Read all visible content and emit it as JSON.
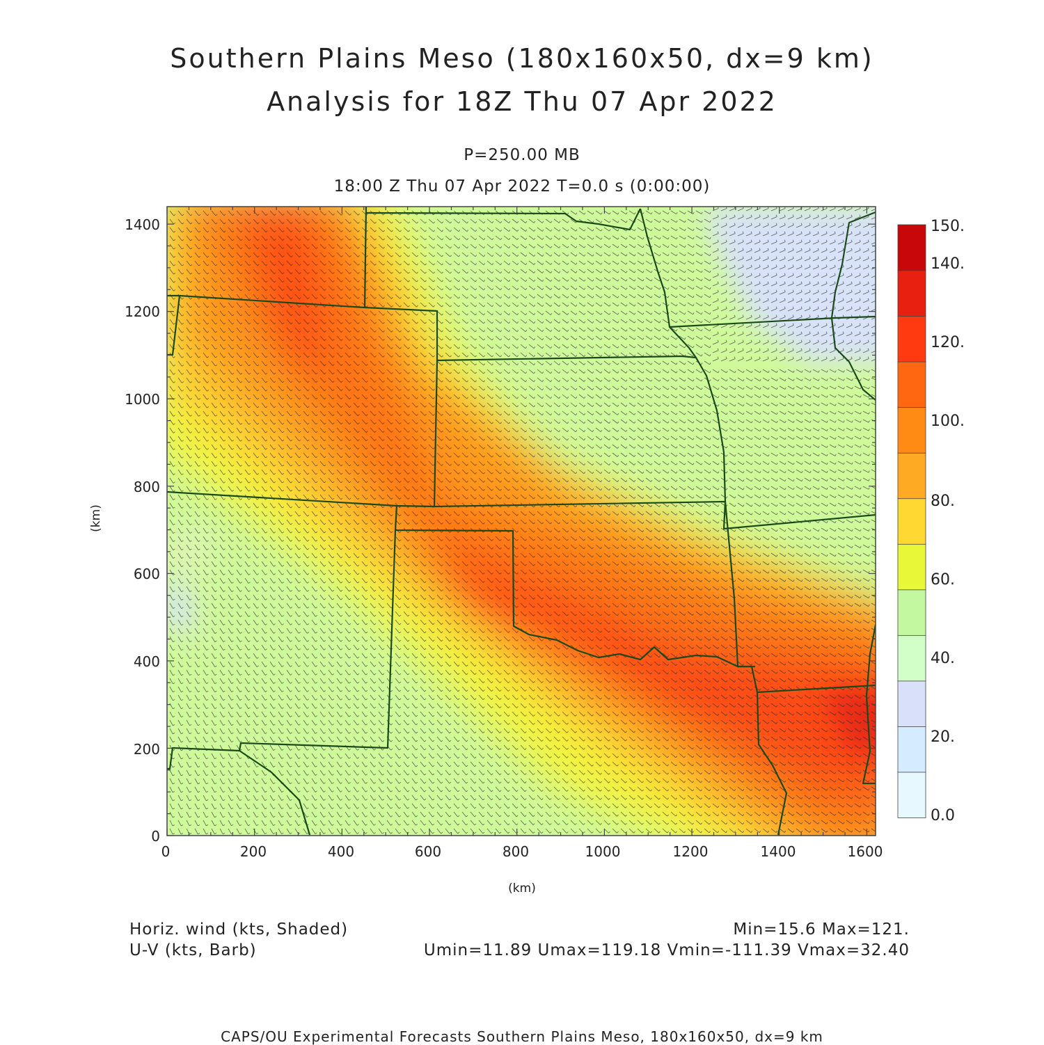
{
  "title": {
    "line1": "Southern Plains Meso (180x160x50, dx=9 km)",
    "line2": "Analysis for 18Z Thu 07 Apr 2022",
    "level": "P=250.00 MB",
    "time": "18:00 Z Thu 07 Apr 2022    T=0.0 s (0:00:00)"
  },
  "axes": {
    "x_ticks": [
      "0",
      "200",
      "400",
      "600",
      "800",
      "1000",
      "1200",
      "1400",
      "1600"
    ],
    "y_ticks": [
      "0",
      "200",
      "400",
      "600",
      "800",
      "1000",
      "1200",
      "1400"
    ],
    "x_title": "(km)",
    "y_title": "(km)",
    "x_range_km": [
      0,
      1620
    ],
    "y_range_km": [
      0,
      1440
    ]
  },
  "colorbar": {
    "labels": [
      "0.0",
      "20.",
      "40.",
      "60.",
      "80.",
      "100.",
      "120.",
      "140.",
      "150."
    ],
    "colors": [
      "#e8f8ff",
      "#d4ecff",
      "#d8e0fa",
      "#d2ffc8",
      "#c4f8a0",
      "#e8f838",
      "#ffd832",
      "#ffaa22",
      "#ff8a14",
      "#ff6810",
      "#ff3a10",
      "#e82010",
      "#c80808"
    ]
  },
  "footer": {
    "left1": "Horiz. wind (kts, Shaded)",
    "left2": "U-V (kts, Barb)",
    "right1": "Min=15.6 Max=121.",
    "right2": "Umin=11.89 Umax=119.18 Vmin=-111.39 Vmax=32.40",
    "credit": "CAPS/OU Experimental Forecasts  Southern Plains Meso, 180x160x50, dx=9 km"
  },
  "map_style": {
    "border_color": "#1a4a1a",
    "barb_color": "#303030",
    "field": "horizontal wind speed at 250 mb"
  }
}
